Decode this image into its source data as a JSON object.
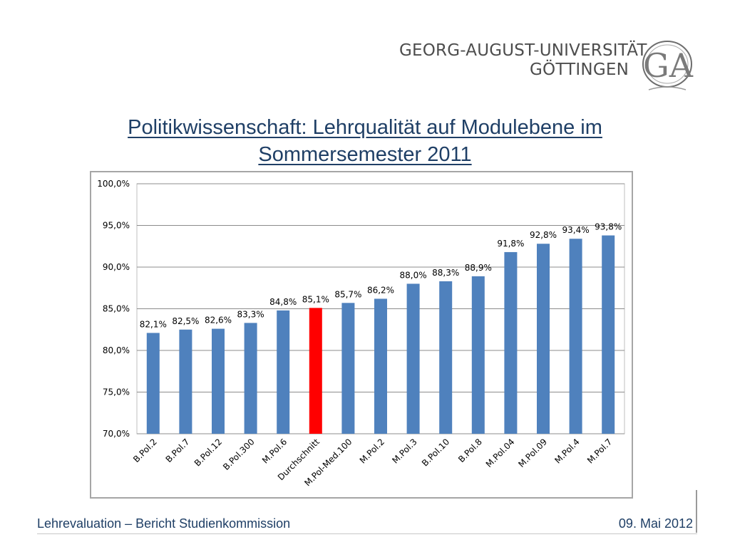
{
  "header": {
    "university_line1": "GEORG-AUGUST-UNIVERSITÄT",
    "university_line2": "GÖTTINGEN",
    "logo_text": "GA"
  },
  "title": {
    "line1": "Politikwissenschaft: Lehrqualität auf Modulebene im",
    "line2": "Sommersemester 2011"
  },
  "footer": {
    "left": "Lehrevaluation – Bericht Studienkommission",
    "right": "09. Mai 2012"
  },
  "colors": {
    "bar": "#4f81bd",
    "highlight_bar": "#ff0000",
    "title": "#1f3f66"
  },
  "chart_data": {
    "type": "bar",
    "categories": [
      "B.Pol.2",
      "B.Pol.7",
      "B.Pol.12",
      "B.Pol.300",
      "M.Pol.6",
      "Durchschnitt",
      "M.Pol-Med.100",
      "M.Pol.2",
      "M.Pol.3",
      "B.Pol.10",
      "B.Pol.8",
      "M.Pol.04",
      "M.Pol.09",
      "M.Pol.4",
      "M.Pol.7"
    ],
    "values": [
      82.1,
      82.5,
      82.6,
      83.3,
      84.8,
      85.1,
      85.7,
      86.2,
      88.0,
      88.3,
      88.9,
      91.8,
      92.8,
      93.4,
      93.8
    ],
    "value_labels": [
      "82,1%",
      "82,5%",
      "82,6%",
      "83,3%",
      "84,8%",
      "85,1%",
      "85,7%",
      "86,2%",
      "88,0%",
      "88,3%",
      "88,9%",
      "91,8%",
      "92,8%",
      "93,4%",
      "93,8%"
    ],
    "highlight_index": 5,
    "ylim": [
      70,
      100
    ],
    "y_ticks": [
      {
        "value": 70,
        "label": "70,0%"
      },
      {
        "value": 75,
        "label": "75,0%"
      },
      {
        "value": 80,
        "label": "80,0%"
      },
      {
        "value": 85,
        "label": "85,0%"
      },
      {
        "value": 90,
        "label": "90,0%"
      },
      {
        "value": 95,
        "label": "95,0%"
      },
      {
        "value": 100,
        "label": "100,0%"
      }
    ],
    "grid": true,
    "legend": "none",
    "title": "",
    "xlabel": "",
    "ylabel": ""
  }
}
